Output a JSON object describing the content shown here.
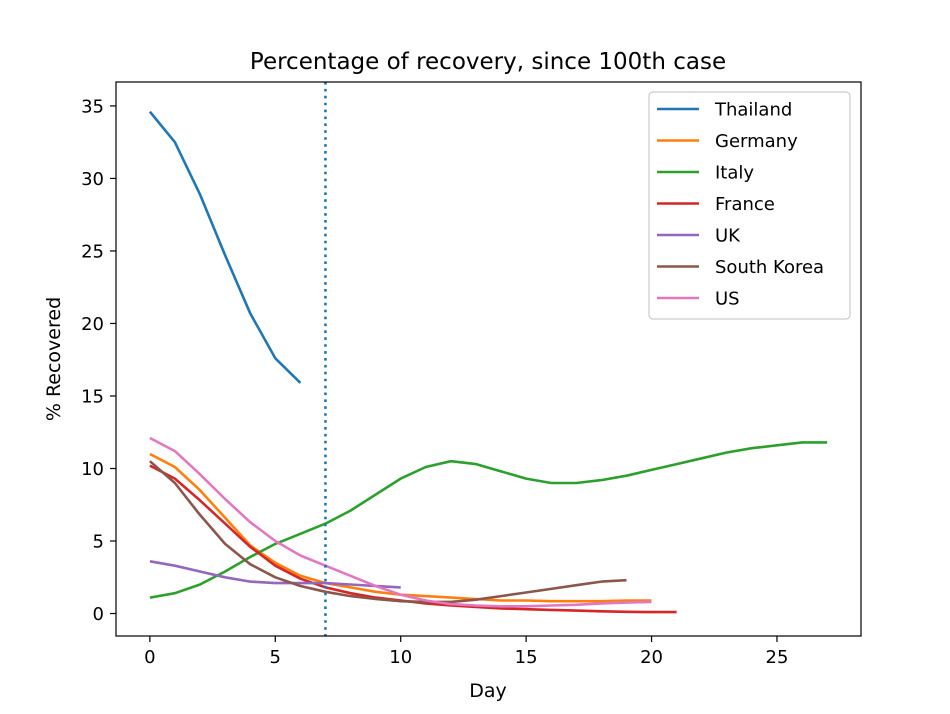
{
  "chart_data": {
    "type": "line",
    "title": "Percentage of recovery, since 100th case",
    "xlabel": "Day",
    "ylabel": "% Recovered",
    "xlim": [
      -1.35,
      28.35
    ],
    "ylim": [
      -1.55,
      36.65
    ],
    "xticks": [
      0,
      5,
      10,
      15,
      20,
      25
    ],
    "yticks": [
      0,
      5,
      10,
      15,
      20,
      25,
      30,
      35
    ],
    "grid": false,
    "legend_position": "top-right",
    "reference_line": {
      "x": 7,
      "style": "dotted",
      "color": "#1f77b4"
    },
    "series": [
      {
        "name": "Thailand",
        "color": "#1f77b4",
        "x": [
          0,
          1,
          2,
          3,
          4,
          5,
          6
        ],
        "y": [
          34.6,
          32.5,
          28.9,
          24.7,
          20.7,
          17.6,
          15.9
        ]
      },
      {
        "name": "Germany",
        "color": "#ff7f0e",
        "x": [
          0,
          1,
          2,
          3,
          4,
          5,
          6,
          7,
          8,
          9,
          10,
          11,
          12,
          13,
          14,
          15,
          16,
          17,
          18,
          19,
          20
        ],
        "y": [
          11.0,
          10.1,
          8.5,
          6.6,
          4.7,
          3.5,
          2.6,
          2.1,
          1.8,
          1.5,
          1.3,
          1.2,
          1.1,
          1.0,
          0.9,
          0.9,
          0.85,
          0.85,
          0.85,
          0.9,
          0.9
        ]
      },
      {
        "name": "Italy",
        "color": "#2ca02c",
        "x": [
          0,
          1,
          2,
          3,
          4,
          5,
          6,
          7,
          8,
          9,
          10,
          11,
          12,
          13,
          14,
          15,
          16,
          17,
          18,
          19,
          20,
          21,
          22,
          23,
          24,
          25,
          26,
          27
        ],
        "y": [
          1.1,
          1.4,
          2.0,
          2.9,
          3.9,
          4.8,
          5.5,
          6.2,
          7.1,
          8.2,
          9.3,
          10.1,
          10.5,
          10.3,
          9.8,
          9.3,
          9.0,
          9.0,
          9.2,
          9.5,
          9.9,
          10.3,
          10.7,
          11.1,
          11.4,
          11.6,
          11.8,
          11.8
        ]
      },
      {
        "name": "France",
        "color": "#d62728",
        "x": [
          0,
          1,
          2,
          3,
          4,
          5,
          6,
          7,
          8,
          9,
          10,
          11,
          12,
          13,
          14,
          15,
          16,
          17,
          18,
          19,
          20,
          21
        ],
        "y": [
          10.2,
          9.3,
          7.8,
          6.2,
          4.6,
          3.3,
          2.4,
          1.8,
          1.4,
          1.1,
          0.9,
          0.7,
          0.55,
          0.45,
          0.35,
          0.3,
          0.25,
          0.2,
          0.15,
          0.12,
          0.1,
          0.1
        ]
      },
      {
        "name": "UK",
        "color": "#9467bd",
        "x": [
          0,
          1,
          2,
          3,
          4,
          5,
          6,
          7,
          8,
          9,
          10
        ],
        "y": [
          3.6,
          3.3,
          2.9,
          2.5,
          2.2,
          2.1,
          2.1,
          2.1,
          2.0,
          1.9,
          1.8
        ]
      },
      {
        "name": "South Korea",
        "color": "#8c564b",
        "x": [
          0,
          1,
          2,
          3,
          4,
          5,
          6,
          7,
          8,
          9,
          10,
          11,
          12,
          13,
          14,
          15,
          16,
          17,
          18,
          19
        ],
        "y": [
          10.5,
          9.0,
          6.8,
          4.8,
          3.4,
          2.5,
          1.9,
          1.5,
          1.2,
          1.0,
          0.85,
          0.8,
          0.8,
          0.95,
          1.2,
          1.45,
          1.7,
          1.95,
          2.2,
          2.3
        ]
      },
      {
        "name": "US",
        "color": "#e377c2",
        "x": [
          0,
          1,
          2,
          3,
          4,
          5,
          6,
          7,
          8,
          9,
          10,
          11,
          12,
          13,
          14,
          15,
          16,
          17,
          18,
          19,
          20
        ],
        "y": [
          12.1,
          11.2,
          9.6,
          7.9,
          6.3,
          5.0,
          4.0,
          3.3,
          2.6,
          1.9,
          1.3,
          0.9,
          0.65,
          0.55,
          0.5,
          0.5,
          0.55,
          0.6,
          0.7,
          0.75,
          0.8
        ]
      }
    ]
  }
}
